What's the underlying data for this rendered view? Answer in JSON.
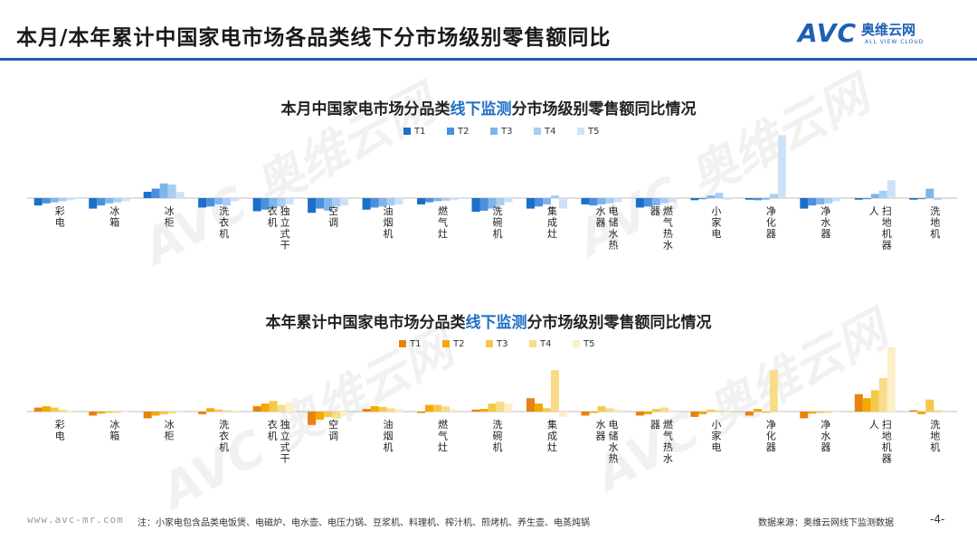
{
  "header": {
    "title": "本月/本年累计中国家电市场各品类线下分市场级别零售额同比",
    "logo_mark": "AVC",
    "logo_cn": "奥维云网",
    "logo_en": "ALL VIEW CLOUD"
  },
  "watermark": {
    "text": "AVC 奥维云网",
    "sub": "ALL VIEW CLOUD"
  },
  "footer": {
    "url": "www.avc-mr.com",
    "note": "注：小家电包含品类电饭煲、电磁炉、电水壶、电压力锅、豆浆机、料理机、榨汁机、煎烤机、养生壶、电蒸炖锅",
    "source": "数据来源：奥维云网线下监测数据",
    "page": "-4-"
  },
  "chart_data": [
    {
      "type": "bar",
      "title_prefix": "本月中国家电市场分品类",
      "title_highlight": "线下监测",
      "title_suffix": "分市场级别零售额同比情况",
      "categories": [
        "彩电",
        "冰箱",
        "冰柜",
        "洗衣机",
        "独立式干衣机",
        "空调",
        "油烟机",
        "燃气灶",
        "洗碗机",
        "集成灶",
        "电储水热水器",
        "燃气热水器",
        "小家电",
        "净化器",
        "净水器",
        "扫地机器人",
        "洗地机"
      ],
      "colors": [
        "#1b6fc9",
        "#4a90de",
        "#7fb4ea",
        "#a9cdf2",
        "#cde2f8"
      ],
      "series": [
        {
          "name": "T1",
          "values": [
            -14,
            -20,
            12,
            -18,
            -25,
            -28,
            -22,
            -12,
            -26,
            -20,
            -12,
            -18,
            -4,
            -3,
            -20,
            -3,
            -3
          ]
        },
        {
          "name": "T2",
          "values": [
            -10,
            -14,
            18,
            -16,
            -22,
            -20,
            -18,
            -8,
            -24,
            -16,
            -14,
            -16,
            -2,
            -4,
            -14,
            -2,
            -2
          ]
        },
        {
          "name": "T3",
          "values": [
            -8,
            -10,
            28,
            -12,
            -18,
            -24,
            -16,
            -6,
            -20,
            -12,
            -12,
            -14,
            5,
            -3,
            -12,
            8,
            18
          ]
        },
        {
          "name": "T4",
          "values": [
            -6,
            -8,
            26,
            -14,
            -16,
            -16,
            -14,
            -5,
            -14,
            5,
            -10,
            -10,
            10,
            8,
            -10,
            14,
            -3
          ]
        },
        {
          "name": "T5",
          "values": [
            -4,
            -6,
            12,
            -6,
            -12,
            -14,
            -12,
            -4,
            -8,
            -20,
            -8,
            -8,
            -3,
            120,
            -6,
            34,
            -2
          ]
        }
      ]
    },
    {
      "type": "bar",
      "title_prefix": "本年累计中国家电市场分品类",
      "title_highlight": "线下监测",
      "title_suffix": "分市场级别零售额同比情况",
      "categories": [
        "彩电",
        "冰箱",
        "冰柜",
        "洗衣机",
        "独立式干衣机",
        "空调",
        "油烟机",
        "燃气灶",
        "洗碗机",
        "集成灶",
        "电储水热水器",
        "燃气热水器",
        "小家电",
        "净化器",
        "净水器",
        "扫地机器人",
        "洗地机"
      ],
      "colors": [
        "#e8830f",
        "#f5a800",
        "#f5c84a",
        "#f8dc8a",
        "#fcefc8"
      ],
      "series": [
        {
          "name": "T1",
          "values": [
            6,
            -6,
            -10,
            -4,
            8,
            -20,
            4,
            -2,
            3,
            20,
            -6,
            -6,
            -8,
            -6,
            -10,
            26,
            2
          ]
        },
        {
          "name": "T2",
          "values": [
            8,
            -3,
            -6,
            5,
            12,
            -12,
            8,
            10,
            4,
            12,
            -2,
            -4,
            -4,
            4,
            -3,
            20,
            -4
          ]
        },
        {
          "name": "T3",
          "values": [
            6,
            -2,
            -4,
            3,
            16,
            -8,
            7,
            10,
            12,
            5,
            8,
            4,
            3,
            -2,
            -2,
            32,
            18
          ]
        },
        {
          "name": "T4",
          "values": [
            3,
            -2,
            -3,
            2,
            10,
            -10,
            5,
            8,
            15,
            62,
            5,
            6,
            2,
            62,
            -2,
            50,
            2
          ]
        },
        {
          "name": "T5",
          "values": [
            2,
            -1,
            -2,
            2,
            14,
            -6,
            4,
            4,
            12,
            -8,
            4,
            3,
            -2,
            -2,
            -1,
            96,
            -2
          ]
        }
      ]
    }
  ]
}
